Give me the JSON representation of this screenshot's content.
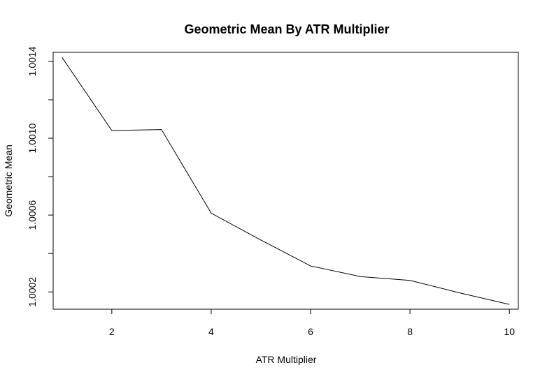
{
  "chart_data": {
    "type": "line",
    "title": "Geometric Mean By ATR Multiplier",
    "xlabel": "ATR Multiplier",
    "ylabel": "Geometric Mean",
    "x": [
      1,
      2,
      3,
      4,
      5,
      6,
      7,
      8,
      9,
      10
    ],
    "y": [
      1.00142,
      1.00104,
      1.001045,
      1.00061,
      1.00047,
      1.000335,
      1.00028,
      1.00026,
      1.000195,
      1.000135
    ],
    "xlim": [
      0.82,
      10.18
    ],
    "ylim": [
      1.00011,
      1.001447
    ],
    "xticks": [
      2,
      4,
      6,
      8,
      10
    ],
    "xtick_labels": [
      "2",
      "4",
      "6",
      "8",
      "10"
    ],
    "yticks": [
      1.0002,
      1.0006,
      1.001,
      1.0014
    ],
    "ytick_labels": [
      "1.0002",
      "1.0006",
      "1.0010",
      "1.0014"
    ],
    "grid": false,
    "legend": false,
    "line_color": "#000000"
  }
}
